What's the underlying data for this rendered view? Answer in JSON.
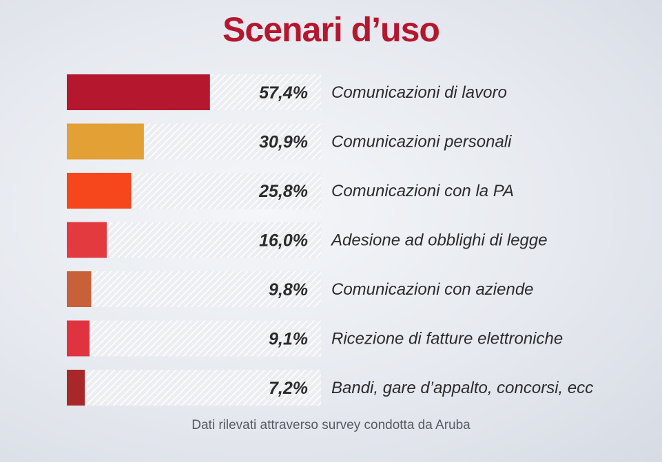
{
  "chart_data": {
    "type": "bar",
    "orientation": "horizontal",
    "title": "Scenari d’uso",
    "categories": [
      "Comunicazioni di lavoro",
      "Comunicazioni personali",
      "Comunicazioni con la PA",
      "Adesione ad obblighi di legge",
      "Comunicazioni con aziende",
      "Ricezione di fatture elettroniche",
      "Bandi, gare d’appalto, concorsi, ecc"
    ],
    "values": [
      57.4,
      30.9,
      25.8,
      16.0,
      9.8,
      9.1,
      7.2
    ],
    "value_labels": [
      "57,4%",
      "30,9%",
      "25,8%",
      "16,0%",
      "9,8%",
      "9,1%",
      "7,2%"
    ],
    "bar_colors": [
      "#b5172f",
      "#e3a035",
      "#f5471b",
      "#e23a3e",
      "#c8613a",
      "#df3340",
      "#a8282a"
    ],
    "xlim": [
      0,
      100
    ],
    "grid": false,
    "footnote": "Dati rilevati attraverso survey condotta da Aruba"
  }
}
